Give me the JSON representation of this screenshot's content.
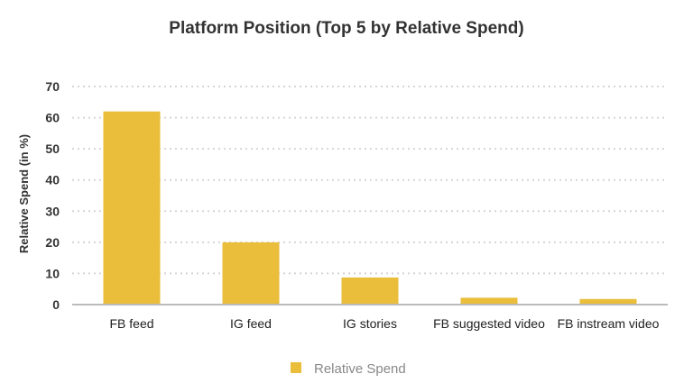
{
  "chart_data": {
    "type": "bar",
    "title": "Platform Position (Top 5 by Relative Spend)",
    "xlabel": "",
    "ylabel": "Relative Spend (in %)",
    "categories": [
      "FB feed",
      "IG feed",
      "IG stories",
      "FB suggested video",
      "FB instream video"
    ],
    "series": [
      {
        "name": "Relative Spend",
        "values": [
          62,
          20,
          8.7,
          2.2,
          1.8
        ],
        "color": "#eabd3b"
      }
    ],
    "ylim": [
      0,
      70
    ],
    "yticks": [
      0,
      10,
      20,
      30,
      40,
      50,
      60,
      70
    ],
    "grid": true,
    "legend_position": "bottom"
  }
}
